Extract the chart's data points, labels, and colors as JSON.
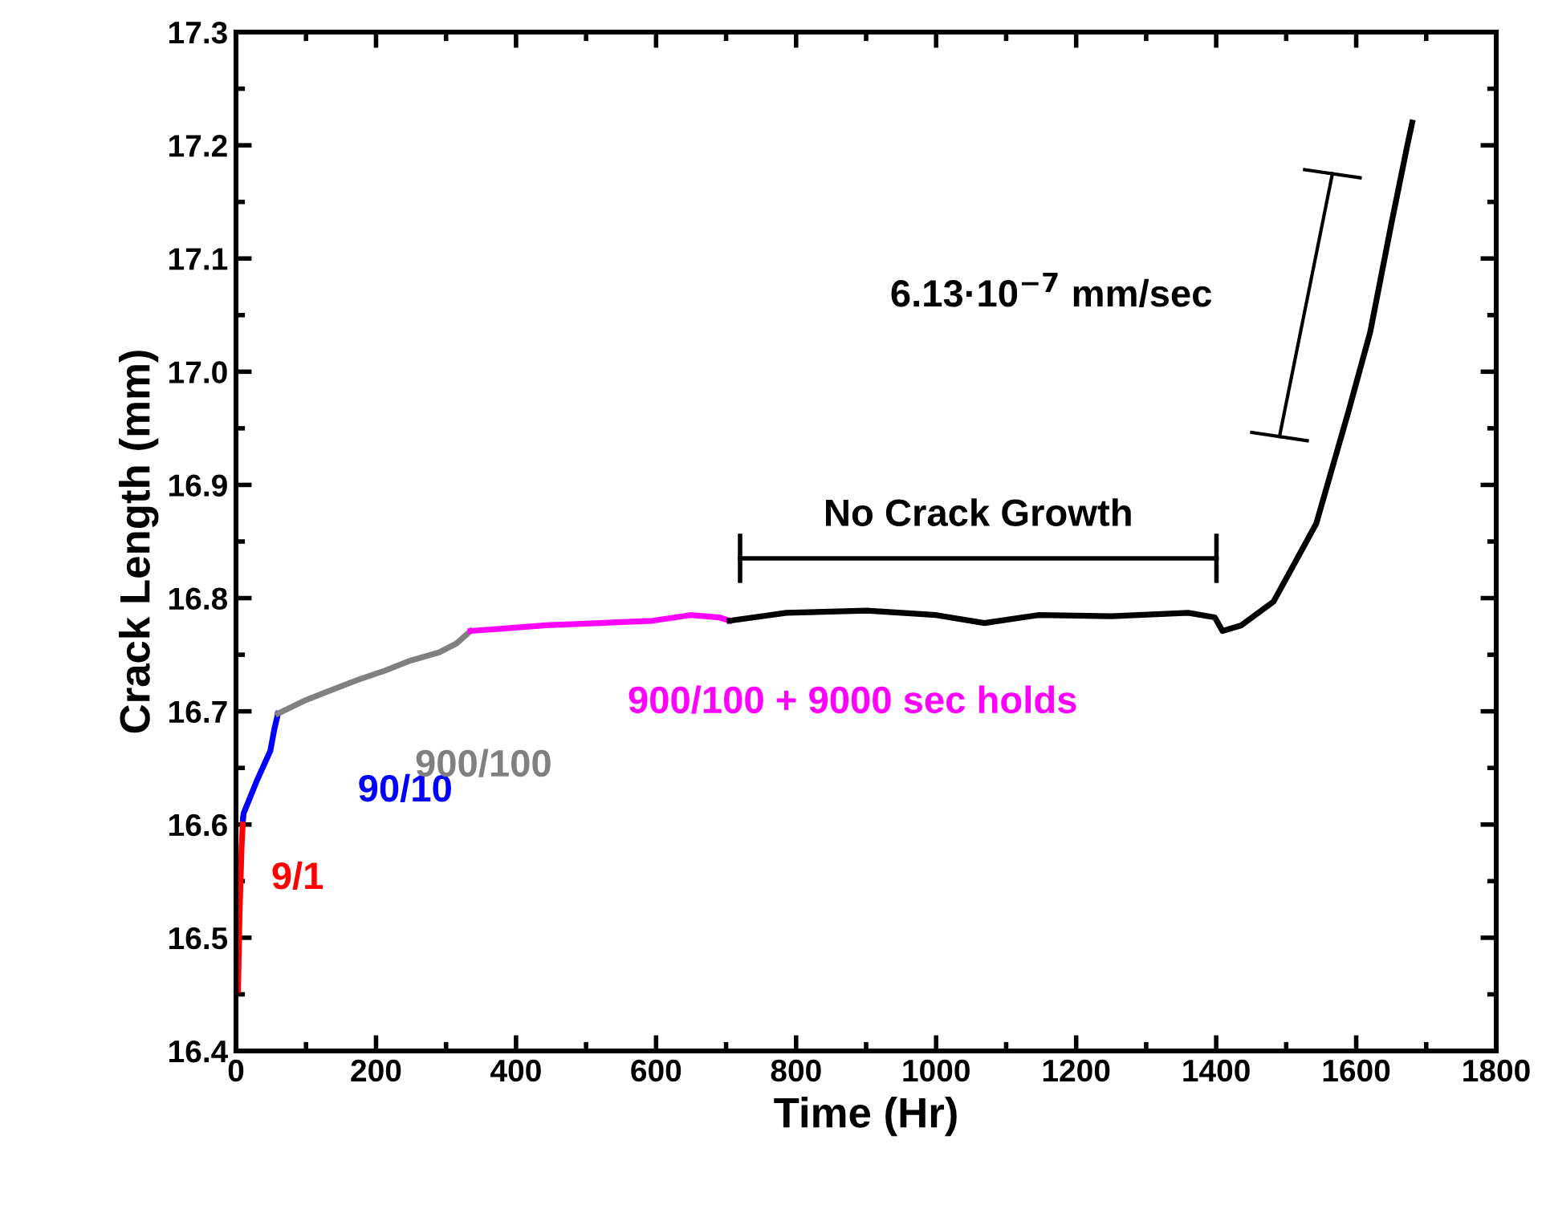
{
  "chart_data": {
    "type": "line",
    "xlabel": "Time (Hr)",
    "ylabel": "Crack Length (mm)",
    "xlim": [
      0,
      1800
    ],
    "xticks": [
      0,
      200,
      400,
      600,
      800,
      1000,
      1200,
      1400,
      1600,
      1800
    ],
    "ylim": [
      16.4,
      17.3
    ],
    "yticks": [
      16.4,
      16.5,
      16.6,
      16.7,
      16.8,
      16.9,
      {
        "value": 17.0,
        "label": "17.0"
      },
      17.1,
      17.2,
      17.3
    ],
    "grid": false,
    "legend": false,
    "marker": "none",
    "line_style": "solid",
    "series": [
      {
        "name": "9/1",
        "color": "#ff0000",
        "x": [
          3,
          5,
          8,
          10
        ],
        "values": [
          16.454,
          16.52,
          16.58,
          16.605
        ]
      },
      {
        "name": "90/10",
        "color": "#0000ff",
        "x": [
          10,
          11,
          30,
          49,
          55,
          60
        ],
        "values": [
          16.605,
          16.61,
          16.639,
          16.665,
          16.685,
          16.698
        ]
      },
      {
        "name": "900/100",
        "color": "#808080",
        "x": [
          60,
          100,
          137,
          175,
          213,
          250,
          290,
          315,
          335
        ],
        "values": [
          16.698,
          16.71,
          16.719,
          16.728,
          16.736,
          16.745,
          16.752,
          16.76,
          16.771
        ]
      },
      {
        "name": "900/100 + 9000 sec holds",
        "color": "#ff00ff",
        "x": [
          335,
          380,
          443,
          520,
          595,
          649,
          690,
          705
        ],
        "values": [
          16.771,
          16.773,
          16.776,
          16.778,
          16.78,
          16.785,
          16.783,
          16.78
        ]
      },
      {
        "color": "#000000",
        "x": [
          705,
          786,
          901,
          1000,
          1069,
          1146,
          1250,
          1360,
          1398,
          1409,
          1436,
          1482,
          1513,
          1543,
          1589,
          1620,
          1650,
          1673,
          1680
        ],
        "values": [
          16.78,
          16.787,
          16.789,
          16.785,
          16.778,
          16.785,
          16.784,
          16.787,
          16.783,
          16.771,
          16.776,
          16.797,
          16.832,
          16.866,
          16.965,
          17.035,
          17.13,
          17.2,
          17.22
        ]
      }
    ],
    "annotations": [
      "No Crack Growth",
      "6.13·10$^{−7}$ mm/sec"
    ]
  }
}
